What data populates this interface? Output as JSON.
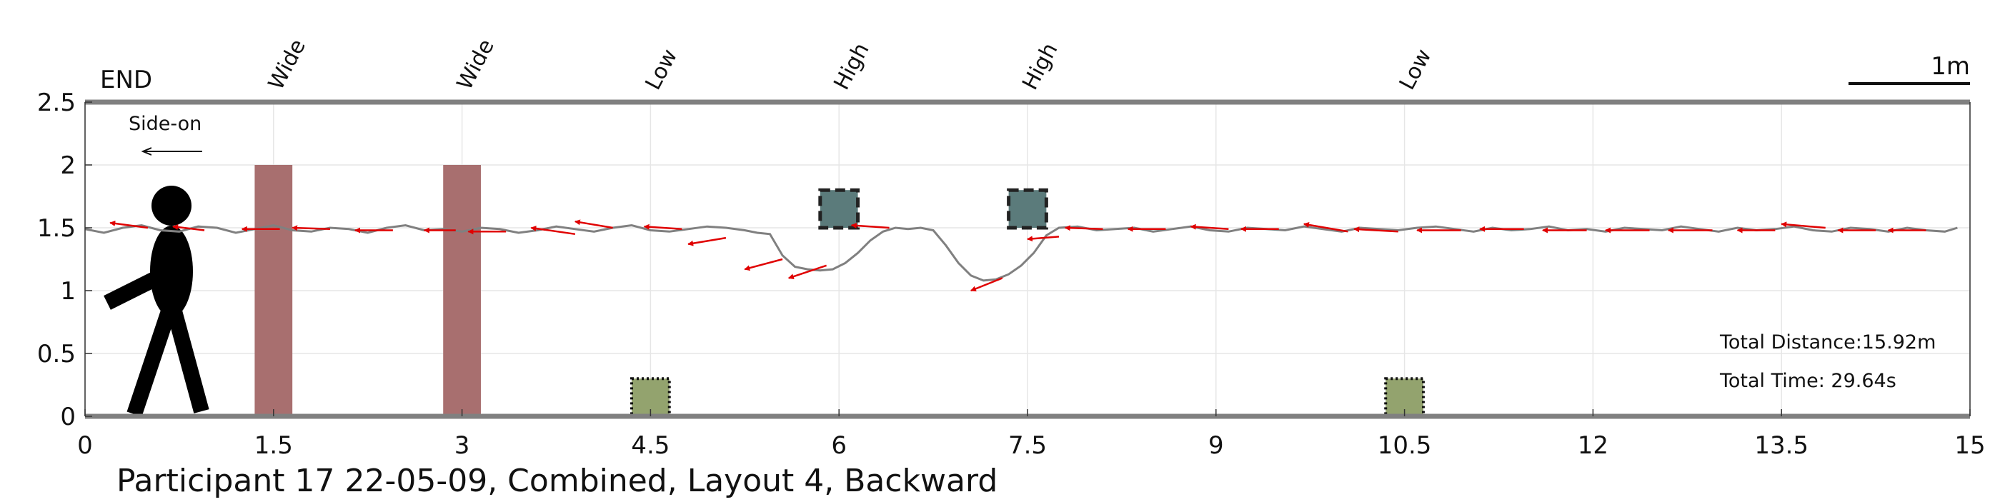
{
  "chart_data": {
    "type": "line",
    "title": "Participant 17 22-05-09, Combined, Layout 4, Backward",
    "xlabel": "",
    "ylabel": "",
    "xlim": [
      0,
      15
    ],
    "ylim": [
      0,
      2.5
    ],
    "x_ticks": [
      "0",
      "1.5",
      "3",
      "4.5",
      "6",
      "7.5",
      "9",
      "10.5",
      "12",
      "13.5",
      "15"
    ],
    "y_ticks": [
      "0",
      "0.5",
      "1",
      "1.5",
      "2",
      "2.5"
    ],
    "grid": true,
    "end_label": "END",
    "direction_label": "Side-on",
    "scale_bar_label": "1m",
    "stats": {
      "distance": "Total Distance:15.92m",
      "time": "Total Time: 29.64s"
    },
    "obstacles": [
      {
        "label": "Wide",
        "type": "wide",
        "x_start": 1.35,
        "x_end": 1.65,
        "y_bottom": 0,
        "y_top": 2.0,
        "color": "#a86f6f"
      },
      {
        "label": "Wide",
        "type": "wide",
        "x_start": 2.85,
        "x_end": 3.15,
        "y_bottom": 0,
        "y_top": 2.0,
        "color": "#a86f6f"
      },
      {
        "label": "Low",
        "type": "low",
        "x_start": 4.35,
        "x_end": 4.65,
        "y_bottom": 0,
        "y_top": 0.3,
        "color": "#93a36e"
      },
      {
        "label": "High",
        "type": "high",
        "x_start": 5.85,
        "x_end": 6.15,
        "y_bottom": 1.5,
        "y_top": 1.8,
        "color": "#5b7b7b"
      },
      {
        "label": "High",
        "type": "high",
        "x_start": 7.35,
        "x_end": 7.65,
        "y_bottom": 1.5,
        "y_top": 1.8,
        "color": "#5b7b7b"
      },
      {
        "label": "Low",
        "type": "low",
        "x_start": 10.35,
        "x_end": 10.65,
        "y_bottom": 0,
        "y_top": 0.3,
        "color": "#93a36e"
      }
    ],
    "series": [
      {
        "color": "#808080",
        "x": [
          0.0,
          0.15,
          0.3,
          0.45,
          0.6,
          0.75,
          0.9,
          1.05,
          1.2,
          1.35,
          1.5,
          1.65,
          1.8,
          1.95,
          2.1,
          2.25,
          2.4,
          2.55,
          2.7,
          2.85,
          3.0,
          3.15,
          3.3,
          3.45,
          3.6,
          3.75,
          3.9,
          4.05,
          4.2,
          4.35,
          4.5,
          4.65,
          4.8,
          4.95,
          5.1,
          5.25,
          5.35,
          5.45,
          5.55,
          5.65,
          5.75,
          5.85,
          5.95,
          6.05,
          6.15,
          6.25,
          6.35,
          6.45,
          6.55,
          6.65,
          6.75,
          6.85,
          6.95,
          7.05,
          7.15,
          7.25,
          7.35,
          7.45,
          7.55,
          7.65,
          7.75,
          7.9,
          8.05,
          8.2,
          8.35,
          8.5,
          8.65,
          8.8,
          8.95,
          9.1,
          9.25,
          9.4,
          9.55,
          9.7,
          9.85,
          10.0,
          10.15,
          10.3,
          10.45,
          10.6,
          10.75,
          10.9,
          11.05,
          11.2,
          11.35,
          11.5,
          11.65,
          11.8,
          11.95,
          12.1,
          12.25,
          12.4,
          12.55,
          12.7,
          12.85,
          13.0,
          13.15,
          13.3,
          13.45,
          13.6,
          13.75,
          13.9,
          14.05,
          14.2,
          14.35,
          14.5,
          14.65,
          14.8,
          14.9
        ],
        "y": [
          1.49,
          1.46,
          1.5,
          1.52,
          1.48,
          1.47,
          1.51,
          1.5,
          1.46,
          1.49,
          1.52,
          1.48,
          1.47,
          1.5,
          1.49,
          1.46,
          1.5,
          1.52,
          1.48,
          1.49,
          1.47,
          1.5,
          1.49,
          1.46,
          1.48,
          1.51,
          1.49,
          1.47,
          1.5,
          1.52,
          1.48,
          1.47,
          1.49,
          1.51,
          1.5,
          1.48,
          1.46,
          1.45,
          1.28,
          1.19,
          1.17,
          1.16,
          1.17,
          1.22,
          1.3,
          1.4,
          1.47,
          1.5,
          1.49,
          1.5,
          1.48,
          1.36,
          1.22,
          1.12,
          1.08,
          1.09,
          1.13,
          1.2,
          1.3,
          1.44,
          1.5,
          1.51,
          1.48,
          1.49,
          1.5,
          1.47,
          1.49,
          1.51,
          1.48,
          1.47,
          1.5,
          1.49,
          1.48,
          1.51,
          1.49,
          1.47,
          1.5,
          1.49,
          1.48,
          1.5,
          1.51,
          1.49,
          1.47,
          1.5,
          1.48,
          1.49,
          1.51,
          1.48,
          1.49,
          1.47,
          1.5,
          1.49,
          1.48,
          1.51,
          1.49,
          1.47,
          1.5,
          1.48,
          1.49,
          1.51,
          1.48,
          1.47,
          1.5,
          1.49,
          1.47,
          1.5,
          1.48,
          1.47,
          1.5
        ]
      }
    ],
    "orientation_arrows": {
      "color": "#e00000",
      "points": [
        {
          "x": 0.5,
          "y": 1.5,
          "dx": -0.3,
          "dy": 0.04
        },
        {
          "x": 0.95,
          "y": 1.48,
          "dx": -0.25,
          "dy": 0.03
        },
        {
          "x": 1.55,
          "y": 1.49,
          "dx": -0.3,
          "dy": 0.0
        },
        {
          "x": 1.95,
          "y": 1.49,
          "dx": -0.3,
          "dy": 0.01
        },
        {
          "x": 2.45,
          "y": 1.48,
          "dx": -0.3,
          "dy": 0.0
        },
        {
          "x": 2.95,
          "y": 1.48,
          "dx": -0.25,
          "dy": 0.0
        },
        {
          "x": 3.35,
          "y": 1.47,
          "dx": -0.3,
          "dy": 0.0
        },
        {
          "x": 3.9,
          "y": 1.45,
          "dx": -0.35,
          "dy": 0.05
        },
        {
          "x": 4.2,
          "y": 1.5,
          "dx": -0.3,
          "dy": 0.05
        },
        {
          "x": 4.75,
          "y": 1.49,
          "dx": -0.3,
          "dy": 0.02
        },
        {
          "x": 5.1,
          "y": 1.42,
          "dx": -0.3,
          "dy": -0.05
        },
        {
          "x": 5.55,
          "y": 1.25,
          "dx": -0.3,
          "dy": -0.08
        },
        {
          "x": 5.9,
          "y": 1.2,
          "dx": -0.3,
          "dy": -0.1
        },
        {
          "x": 6.4,
          "y": 1.5,
          "dx": -0.3,
          "dy": 0.02
        },
        {
          "x": 7.3,
          "y": 1.1,
          "dx": -0.25,
          "dy": -0.1
        },
        {
          "x": 7.75,
          "y": 1.43,
          "dx": -0.25,
          "dy": -0.02
        },
        {
          "x": 8.1,
          "y": 1.49,
          "dx": -0.3,
          "dy": 0.01
        },
        {
          "x": 8.6,
          "y": 1.49,
          "dx": -0.3,
          "dy": 0.0
        },
        {
          "x": 9.1,
          "y": 1.49,
          "dx": -0.3,
          "dy": 0.02
        },
        {
          "x": 9.5,
          "y": 1.49,
          "dx": -0.3,
          "dy": 0.0
        },
        {
          "x": 10.05,
          "y": 1.47,
          "dx": -0.35,
          "dy": 0.06
        },
        {
          "x": 10.45,
          "y": 1.47,
          "dx": -0.35,
          "dy": 0.02
        },
        {
          "x": 10.95,
          "y": 1.48,
          "dx": -0.35,
          "dy": 0.0
        },
        {
          "x": 11.45,
          "y": 1.49,
          "dx": -0.35,
          "dy": 0.0
        },
        {
          "x": 11.95,
          "y": 1.48,
          "dx": -0.35,
          "dy": 0.0
        },
        {
          "x": 12.45,
          "y": 1.48,
          "dx": -0.35,
          "dy": 0.0
        },
        {
          "x": 12.95,
          "y": 1.48,
          "dx": -0.35,
          "dy": 0.0
        },
        {
          "x": 13.45,
          "y": 1.48,
          "dx": -0.3,
          "dy": 0.0
        },
        {
          "x": 13.85,
          "y": 1.5,
          "dx": -0.35,
          "dy": 0.03
        },
        {
          "x": 14.25,
          "y": 1.48,
          "dx": -0.3,
          "dy": 0.0
        },
        {
          "x": 14.65,
          "y": 1.48,
          "dx": -0.3,
          "dy": 0.0
        }
      ]
    }
  }
}
